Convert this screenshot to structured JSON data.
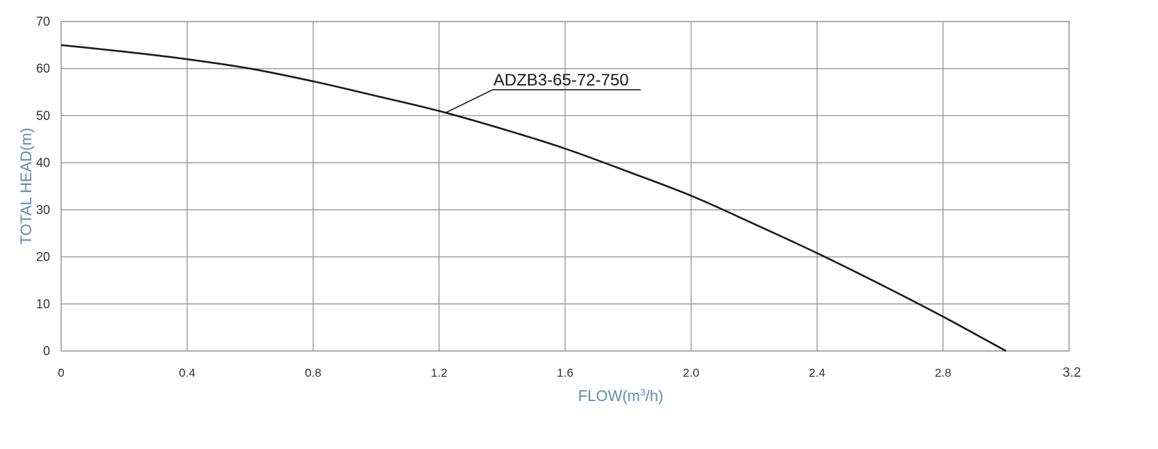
{
  "colors": {
    "axis_title": "#5f8ea6",
    "grid": "#8a8a8a",
    "curve": "#1a1a1a",
    "text": "#333333"
  },
  "chart_data": {
    "type": "line",
    "xlabel_prefix": "FLOW(m",
    "xlabel_sup": "3",
    "xlabel_suffix": "/h)",
    "ylabel": "TOTAL HEAD(m)",
    "xlim": [
      0,
      3.2
    ],
    "ylim": [
      0,
      70
    ],
    "x_ticks": [
      0,
      0.4,
      0.8,
      1.2,
      1.6,
      2.0,
      2.4,
      2.8,
      3.2
    ],
    "x_tick_labels": [
      "0",
      "0.4",
      "0.8",
      "1.2",
      "1.6",
      "2.0",
      "2.4",
      "2.8",
      "3.2"
    ],
    "y_ticks": [
      0,
      10,
      20,
      30,
      40,
      50,
      60,
      70
    ],
    "y_tick_labels": [
      "0",
      "10",
      "20",
      "30",
      "40",
      "50",
      "60",
      "70"
    ],
    "grid": true,
    "series": [
      {
        "name": "ADZB3-65-72-750",
        "x": [
          0,
          0.2,
          0.4,
          0.6,
          0.8,
          1.0,
          1.2,
          1.4,
          1.6,
          1.8,
          2.0,
          2.2,
          2.4,
          2.6,
          2.8,
          3.0
        ],
        "y": [
          65,
          63.6,
          62,
          60,
          57.3,
          54.2,
          51,
          47.2,
          43,
          38.1,
          33,
          27,
          20.8,
          14.2,
          7.3,
          0
        ]
      }
    ],
    "annotation": {
      "text": "ADZB3-65-72-750",
      "point": [
        1.22,
        50.6
      ],
      "label_anchor": [
        1.37,
        55.5
      ],
      "underline_end": [
        1.84,
        55.5
      ]
    }
  }
}
